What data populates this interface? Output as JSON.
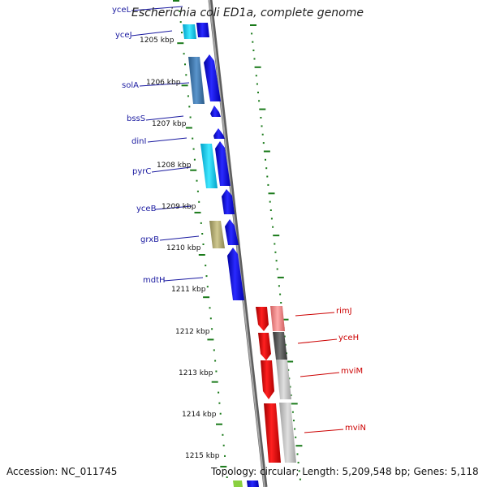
{
  "title": "Escherichia coli ED1a, complete genome",
  "footer": {
    "accession": "Accession: NC_011745",
    "summary": "Topology: circular; Length: 5,209,548 bp; Genes: 5,118"
  },
  "colors": {
    "forward_dark": "#1414e0",
    "reverse_red": "#ee0a0a",
    "steel_blue": "#3f7bb0",
    "cyan": "#00c8f0",
    "olive": "#b0a866",
    "pink": "#f08080",
    "dark_gray": "#555555",
    "light_gray": "#c8c8c8",
    "tick_green": "#1a7a1a",
    "backbone": "#7a7a7a"
  },
  "scale_labels": [
    "1205 kbp",
    "1206 kbp",
    "1207 kbp",
    "1208 kbp",
    "1209 kbp",
    "1210 kbp",
    "1211 kbp",
    "1212 kbp",
    "1213 kbp",
    "1214 kbp",
    "1215 kbp"
  ],
  "left_genes": [
    "yceL",
    "yceJ",
    "solA",
    "bssS",
    "dinI",
    "pyrC",
    "yceB",
    "grxB",
    "mdtH"
  ],
  "right_genes": [
    "rimJ",
    "yceH",
    "mviM",
    "mviN"
  ]
}
